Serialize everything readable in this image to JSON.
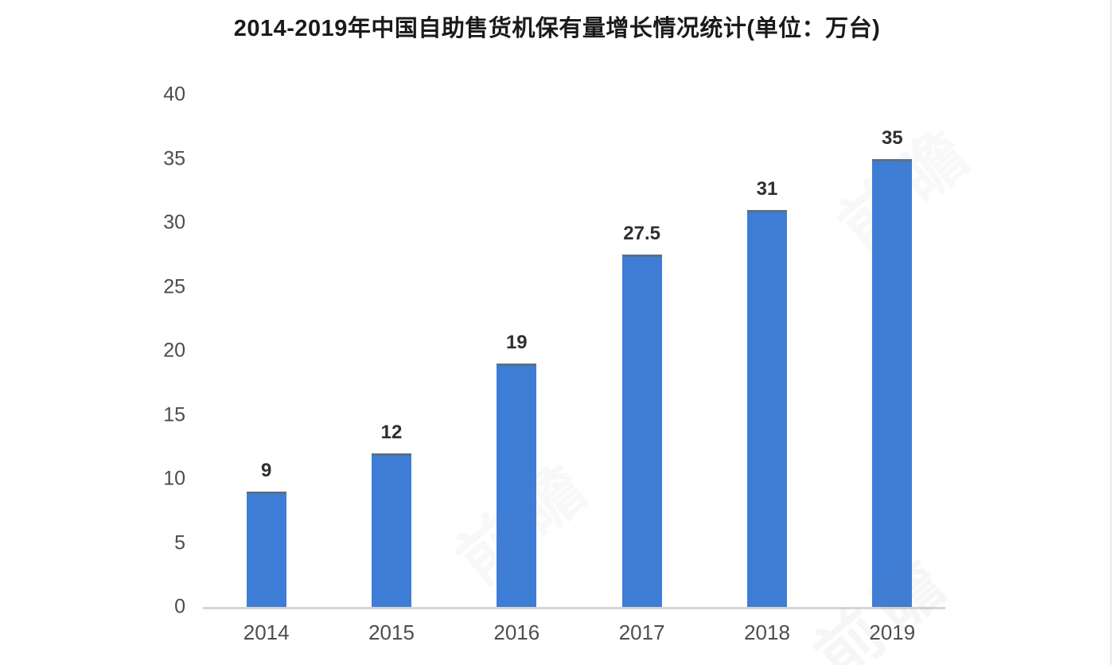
{
  "chart_data": {
    "type": "bar",
    "title": "2014-2019年中国自助售货机保有量增长情况统计(单位：万台)",
    "categories": [
      "2014",
      "2015",
      "2016",
      "2017",
      "2018",
      "2019"
    ],
    "values": [
      9,
      12,
      19,
      27.5,
      31,
      35
    ],
    "value_labels": [
      "9",
      "12",
      "19",
      "27.5",
      "31",
      "35"
    ],
    "yticks": [
      0,
      5,
      10,
      15,
      20,
      25,
      30,
      35,
      40
    ],
    "ylim": [
      0,
      40
    ],
    "xlabel": "",
    "ylabel": "",
    "grid": false,
    "legend_position": "none",
    "bar_color": "#3e7dd6",
    "bar_top_edge_color": "#5d6f80",
    "axis_line_color": "#d5d5d5",
    "title_color": "#1a1a1a",
    "tick_label_color": "#4c4c4c",
    "value_label_color": "#2f2f2f"
  },
  "watermark": {
    "text": "前瞻",
    "color": "#7d88a0"
  }
}
